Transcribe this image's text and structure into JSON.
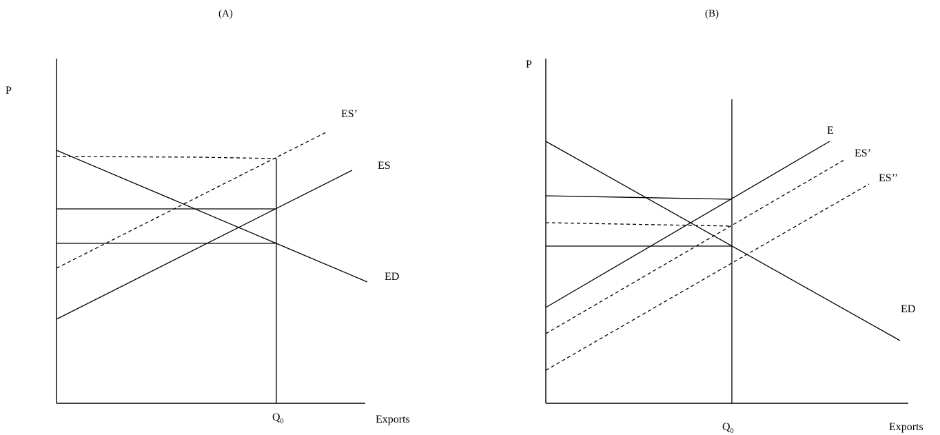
{
  "panel_a": {
    "title": "(A)",
    "y_label": "P",
    "x_label": "Exports",
    "q_label": "Q",
    "q_sub": "0",
    "curves": {
      "es_prime": "ES’",
      "es": "ES",
      "ed": "ED"
    }
  },
  "panel_b": {
    "title": "(B)",
    "y_label": "P",
    "x_label": "Exports",
    "q_label": "Q",
    "q_sub": "0",
    "curves": {
      "e": "E",
      "es_prime": "ES’",
      "es_double_prime": "ES’’",
      "ed": "ED"
    }
  }
}
